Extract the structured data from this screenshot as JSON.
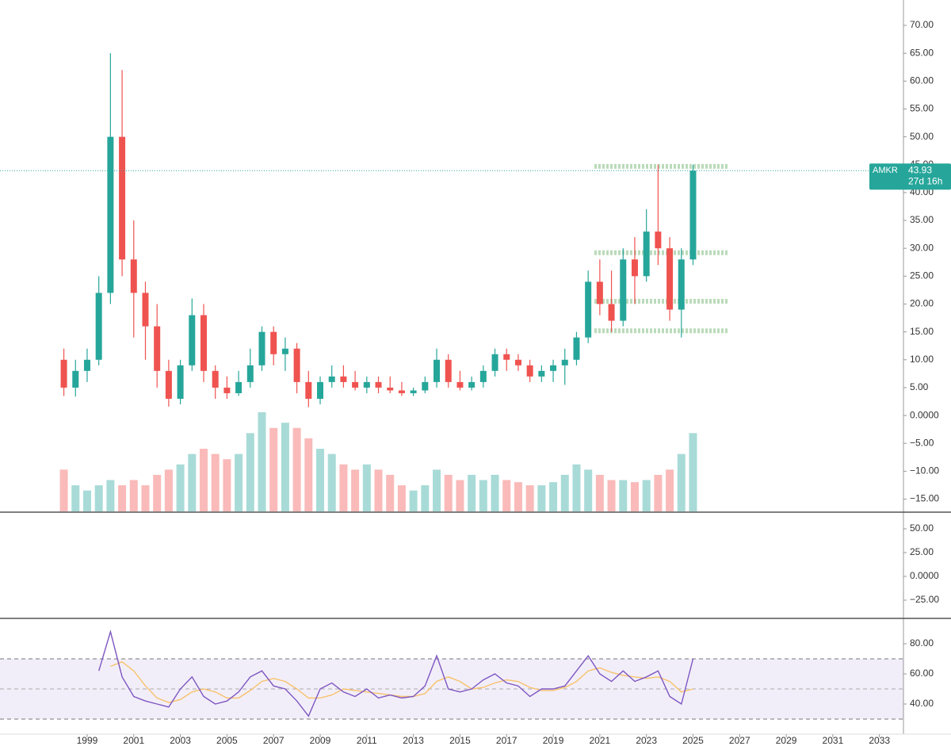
{
  "chart_data": [
    {
      "type": "candlestick",
      "symbol": "AMKR",
      "countdown": "27d 16h",
      "up_color": "#26a69a",
      "down_color": "#ef5350",
      "x": [
        1998,
        1998.5,
        1999,
        1999.5,
        2000,
        2000.5,
        2001,
        2001.5,
        2002,
        2002.5,
        2003,
        2003.5,
        2004,
        2004.5,
        2005,
        2005.5,
        2006,
        2006.5,
        2007,
        2007.5,
        2008,
        2008.5,
        2009,
        2009.5,
        2010,
        2010.5,
        2011,
        2011.5,
        2012,
        2012.5,
        2013,
        2013.5,
        2014,
        2014.5,
        2015,
        2015.5,
        2016,
        2016.5,
        2017,
        2017.5,
        2018,
        2018.5,
        2019,
        2019.5,
        2020,
        2020.5,
        2021,
        2021.5,
        2022,
        2022.5,
        2023,
        2023.5,
        2024,
        2024.5,
        2025
      ],
      "open": [
        10,
        5,
        8,
        10,
        22,
        50,
        28,
        22,
        16,
        8,
        3,
        9,
        18,
        8,
        5,
        4,
        6,
        9,
        15,
        11,
        12,
        6,
        3,
        6,
        7,
        6,
        5,
        6,
        5,
        4.5,
        4,
        4.5,
        6,
        10,
        6,
        5,
        6,
        8,
        11,
        10,
        9,
        7,
        8,
        9,
        10,
        14,
        24,
        20,
        17,
        28,
        25,
        33,
        30,
        19,
        28
      ],
      "high": [
        12,
        10,
        12,
        25,
        65,
        62,
        35,
        24,
        20,
        10,
        10,
        21,
        20,
        9,
        7,
        8,
        12,
        16,
        16,
        14,
        13,
        8,
        7,
        9,
        9,
        8,
        7,
        7,
        7,
        6,
        5,
        7,
        12,
        11,
        8,
        7,
        9,
        12,
        12,
        11,
        10,
        9,
        10,
        12,
        15,
        26,
        28,
        26,
        30,
        32,
        37,
        45,
        32,
        30,
        45
      ],
      "low": [
        3.5,
        3.4,
        6,
        9,
        20,
        25,
        14,
        10,
        5,
        1.6,
        2,
        8,
        6,
        3,
        3,
        3.5,
        5,
        8,
        9,
        8,
        4,
        1.5,
        2,
        5,
        5,
        4.5,
        4,
        4,
        4,
        3.5,
        3.5,
        4,
        5,
        5,
        4.5,
        4.5,
        5,
        7,
        8,
        8,
        6,
        6,
        6,
        5.5,
        9,
        13,
        18,
        15,
        16,
        20,
        24,
        27,
        17,
        14,
        27
      ],
      "close": [
        5,
        8,
        10,
        22,
        50,
        28,
        22,
        16,
        8,
        3,
        9,
        18,
        8,
        5,
        4,
        6,
        9,
        15,
        11,
        12,
        6,
        3,
        6,
        7,
        6,
        5,
        6,
        5,
        4.5,
        4,
        4.5,
        6,
        10,
        6,
        5,
        6,
        8,
        11,
        10,
        9,
        7,
        8,
        9,
        10,
        14,
        24,
        20,
        17,
        28,
        25,
        33,
        30,
        19,
        28,
        43.93
      ],
      "volume": [
        40,
        25,
        20,
        25,
        30,
        25,
        30,
        25,
        35,
        40,
        45,
        55,
        60,
        55,
        50,
        55,
        75,
        95,
        80,
        85,
        80,
        70,
        60,
        55,
        45,
        40,
        45,
        40,
        35,
        25,
        20,
        25,
        40,
        35,
        30,
        35,
        30,
        35,
        30,
        28,
        25,
        25,
        28,
        35,
        45,
        40,
        35,
        30,
        30,
        28,
        30,
        35,
        40,
        55,
        75
      ],
      "levels": [
        44.7,
        29.2,
        20.5,
        15.2
      ],
      "xlim": [
        1995.26,
        2034.03
      ],
      "xticks": [
        1999,
        2001,
        2003,
        2005,
        2007,
        2009,
        2011,
        2013,
        2015,
        2017,
        2019,
        2021,
        2023,
        2025,
        2027,
        2029,
        2031,
        2033
      ],
      "ylim": [
        -17.2,
        74.55
      ],
      "yticks": [
        {
          "value": 70,
          "label": "70.00"
        },
        {
          "value": 65,
          "label": "65.00"
        },
        {
          "value": 60,
          "label": "60.00"
        },
        {
          "value": 55,
          "label": "55.00"
        },
        {
          "value": 50,
          "label": "50.00"
        },
        {
          "value": 45,
          "label": "45.00"
        },
        {
          "value": 40,
          "label": "40.00"
        },
        {
          "value": 35,
          "label": "35.00"
        },
        {
          "value": 30,
          "label": "30.00"
        },
        {
          "value": 25,
          "label": "25.00"
        },
        {
          "value": 20,
          "label": "20.00"
        },
        {
          "value": 15,
          "label": "15.00"
        },
        {
          "value": 10,
          "label": "10.00"
        },
        {
          "value": 5,
          "label": "5.00"
        },
        {
          "value": 0,
          "label": "0.0000"
        },
        {
          "value": -5,
          "label": "−5.00"
        },
        {
          "value": -10,
          "label": "−10.00"
        },
        {
          "value": -15,
          "label": "−15.00"
        }
      ]
    },
    {
      "type": "indicator",
      "ylim": [
        -42.5,
        65.8
      ],
      "yticks": [
        {
          "value": 50,
          "label": "50.00"
        },
        {
          "value": 25,
          "label": "25.00"
        },
        {
          "value": 0,
          "label": "0.0000"
        },
        {
          "value": -25,
          "label": "−25.00"
        }
      ]
    },
    {
      "type": "rsi",
      "color": "#7e57c2",
      "ma_color": "#f7c26b",
      "x": [
        1998,
        1998.5,
        1999,
        1999.5,
        2000,
        2000.5,
        2001,
        2001.5,
        2002,
        2002.5,
        2003,
        2003.5,
        2004,
        2004.5,
        2005,
        2005.5,
        2006,
        2006.5,
        2007,
        2007.5,
        2008,
        2008.5,
        2009,
        2009.5,
        2010,
        2010.5,
        2011,
        2011.5,
        2012,
        2012.5,
        2013,
        2013.5,
        2014,
        2014.5,
        2015,
        2015.5,
        2016,
        2016.5,
        2017,
        2017.5,
        2018,
        2018.5,
        2019,
        2019.5,
        2020,
        2020.5,
        2021,
        2021.5,
        2022,
        2022.5,
        2023,
        2023.5,
        2024,
        2024.5,
        2025
      ],
      "values": [
        null,
        null,
        null,
        62,
        88,
        58,
        45,
        42,
        40,
        38,
        50,
        58,
        45,
        40,
        42,
        48,
        58,
        62,
        52,
        50,
        42,
        32,
        50,
        54,
        48,
        45,
        50,
        44,
        46,
        44,
        45,
        52,
        72,
        50,
        48,
        50,
        56,
        60,
        54,
        52,
        45,
        50,
        50,
        52,
        62,
        72,
        60,
        55,
        62,
        55,
        58,
        62,
        45,
        40,
        70
      ],
      "ma_values": [
        null,
        null,
        null,
        null,
        65,
        68,
        62,
        52,
        44,
        41,
        43,
        48,
        50,
        48,
        44,
        44,
        49,
        55,
        57,
        55,
        50,
        44,
        44,
        46,
        50,
        49,
        48,
        47,
        46,
        45,
        45,
        47,
        55,
        58,
        55,
        50,
        51,
        54,
        56,
        55,
        51,
        49,
        49,
        51,
        55,
        62,
        64,
        61,
        59,
        58,
        57,
        58,
        55,
        48,
        50
      ],
      "bands": [
        30,
        50,
        70
      ],
      "ylim": [
        24.2,
        95.8
      ],
      "yticks": [
        {
          "value": 80,
          "label": "80.00"
        },
        {
          "value": 60,
          "label": "60.00"
        },
        {
          "value": 40,
          "label": "40.00"
        }
      ]
    }
  ]
}
